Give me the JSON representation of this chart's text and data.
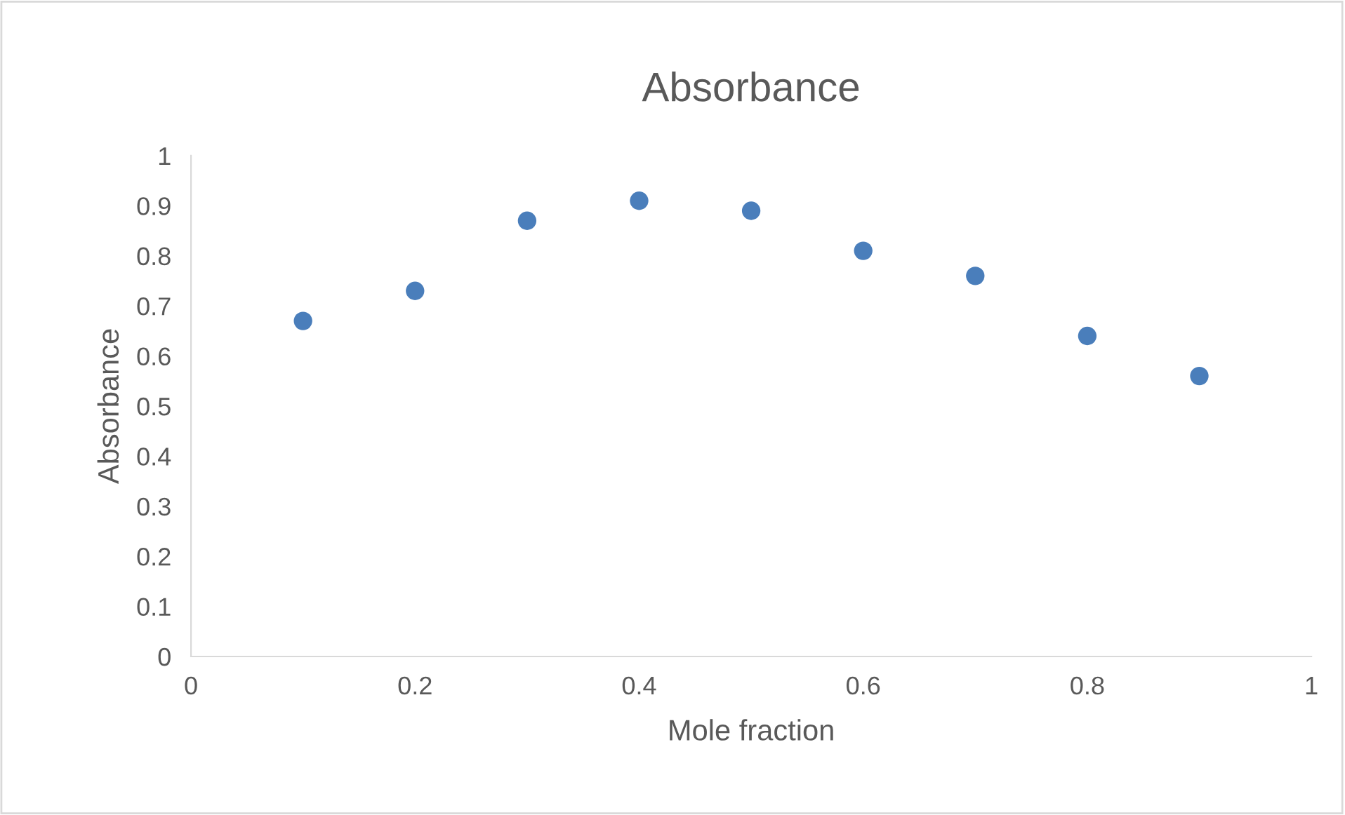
{
  "chart_data": {
    "type": "scatter",
    "title": "Absorbance",
    "xlabel": "Mole fraction",
    "ylabel": "Absorbance",
    "x": [
      0.1,
      0.2,
      0.3,
      0.4,
      0.5,
      0.6,
      0.7,
      0.8,
      0.9
    ],
    "series": [
      {
        "color": "#4a7ebb",
        "values": [
          0.67,
          0.73,
          0.87,
          0.91,
          0.89,
          0.81,
          0.76,
          0.64,
          0.56
        ]
      }
    ],
    "xlim": [
      0,
      1
    ],
    "xticks": [
      0,
      0.2,
      0.4,
      0.6,
      0.8,
      1
    ],
    "ylim": [
      0,
      1
    ],
    "yticks": [
      0,
      0.1,
      0.2,
      0.3,
      0.4,
      0.5,
      0.6,
      0.7,
      0.8,
      0.9,
      1
    ],
    "marker": "circle",
    "grid": false,
    "legend": false
  }
}
